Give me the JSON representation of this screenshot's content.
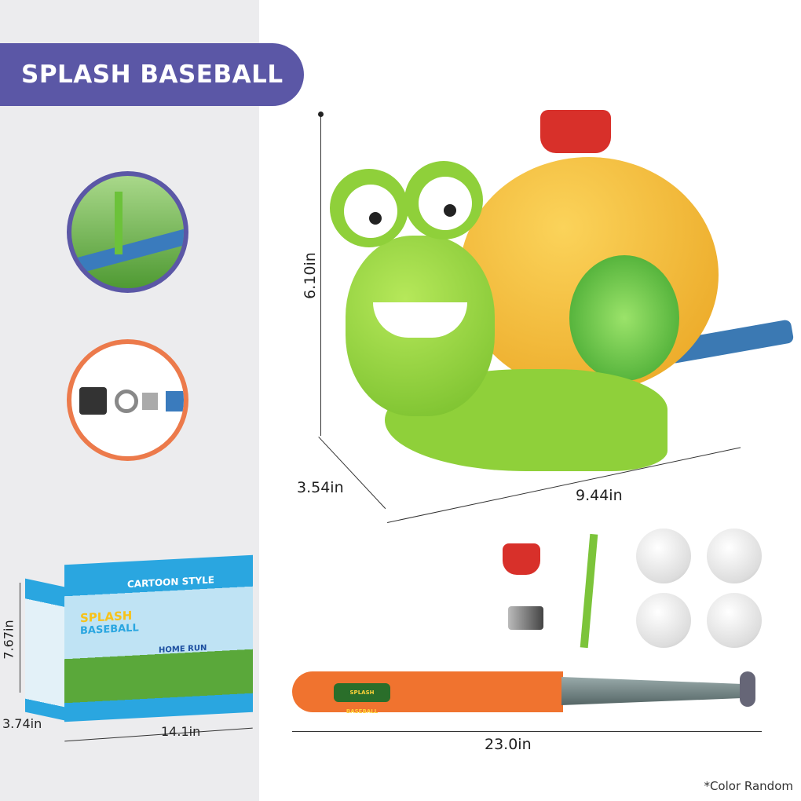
{
  "banner": {
    "title": "SPLASH BASEBALL"
  },
  "dimensions": {
    "snail_height": "6.10in",
    "snail_depth": "3.54in",
    "snail_width": "9.44in",
    "box_height": "7.67in",
    "box_depth": "3.74in",
    "box_width": "14.1in",
    "bat_length": "23.0in"
  },
  "box": {
    "top_text": "CARTOON STYLE",
    "brand_line1": "SPLASH",
    "brand_line2": "BASEBALL",
    "tag": "HOME RUN"
  },
  "bat": {
    "label": "SPLASH BASEBALL"
  },
  "note": "*Color Random",
  "colors": {
    "banner": "#5b57a6",
    "circle_1_border": "#5b57a6",
    "circle_2_border": "#ec7a4b",
    "snail_body": "#8fd03a",
    "snail_shell": "#f2b230",
    "bat": "#f0732f"
  }
}
